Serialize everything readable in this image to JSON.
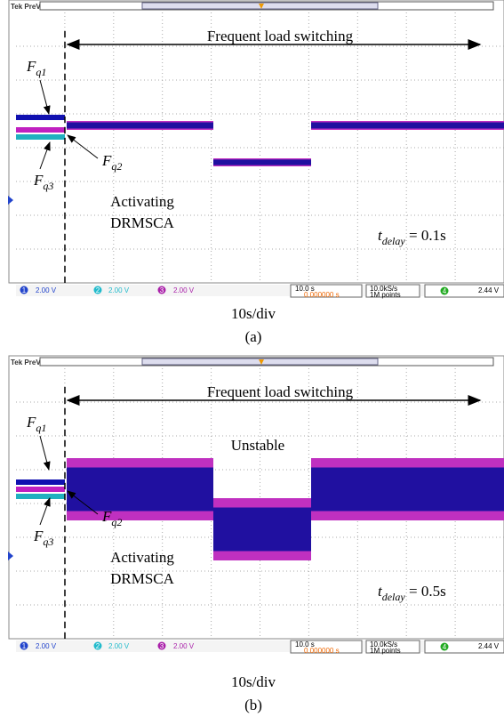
{
  "panels": [
    {
      "scope_label": "Tek PreVu",
      "switching_label": "Frequent load switching",
      "stability_label": null,
      "signals": [
        {
          "main": "F",
          "sub": "q1"
        },
        {
          "main": "F",
          "sub": "q2"
        },
        {
          "main": "F",
          "sub": "q3"
        }
      ],
      "activation": [
        "Activating",
        "DRMSCA"
      ],
      "delay": {
        "main": "t",
        "sub": "delay",
        "rest": " = 0.1s"
      },
      "status": {
        "ch1": "1",
        "ch1_scale": "2.00 V",
        "ch2": "2",
        "ch2_scale": "2.00 V",
        "ch3": "3",
        "ch3_scale": "2.00 V",
        "time_scale": "10.0 s",
        "position": "0.000000 s",
        "rate": "10.0kS/s",
        "points": "1M points",
        "ch4": "4",
        "trigger": "2.44 V"
      },
      "caption": "10s/div",
      "label": "(a)"
    },
    {
      "scope_label": "Tek PreVu",
      "switching_label": "Frequent load switching",
      "stability_label": "Unstable",
      "signals": [
        {
          "main": "F",
          "sub": "q1"
        },
        {
          "main": "F",
          "sub": "q2"
        },
        {
          "main": "F",
          "sub": "q3"
        }
      ],
      "activation": [
        "Activating",
        "DRMSCA"
      ],
      "delay": {
        "main": "t",
        "sub": "delay",
        "rest": " = 0.5s"
      },
      "status": {
        "ch1": "1",
        "ch1_scale": "2.00 V",
        "ch2": "2",
        "ch2_scale": "2.00 V",
        "ch3": "3",
        "ch3_scale": "2.00 V",
        "time_scale": "10.0 s",
        "position": "0.000000 s",
        "rate": "10.0kS/s",
        "points": "1M points",
        "ch4": "4",
        "trigger": "2.44 V"
      },
      "caption": "10s/div",
      "label": "(b)"
    }
  ]
}
